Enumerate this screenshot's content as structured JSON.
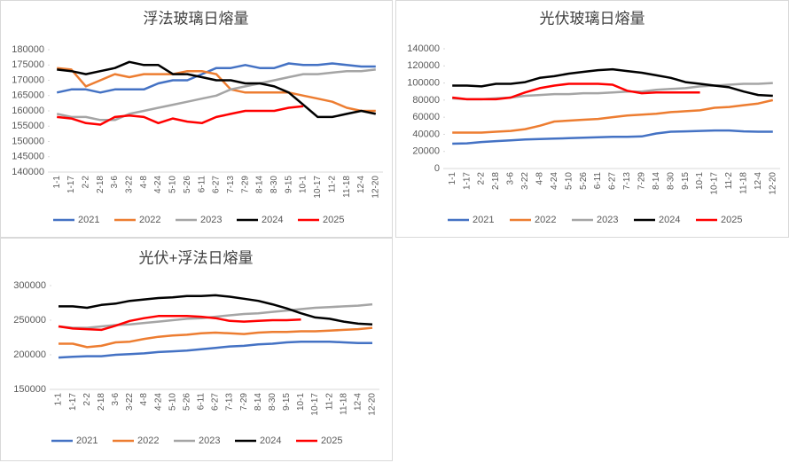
{
  "chart_data": [
    {
      "type": "line",
      "title": "浮法玻璃日熔量",
      "categories": [
        "1-1",
        "1-17",
        "2-2",
        "2-18",
        "3-6",
        "3-22",
        "4-8",
        "4-24",
        "5-10",
        "5-26",
        "6-11",
        "6-27",
        "7-13",
        "7-29",
        "8-14",
        "8-30",
        "9-15",
        "10-1",
        "10-17",
        "11-2",
        "11-18",
        "12-4",
        "12-20"
      ],
      "ylim": [
        140000,
        180000
      ],
      "yticks": [
        140000,
        145000,
        150000,
        155000,
        160000,
        165000,
        170000,
        175000,
        180000
      ],
      "series": [
        {
          "name": "2021",
          "color": "#4472c4",
          "values": [
            166000,
            167000,
            167000,
            166000,
            167000,
            167000,
            167000,
            169000,
            170000,
            170000,
            172000,
            174000,
            174000,
            175000,
            174000,
            174000,
            175500,
            175000,
            175000,
            175500,
            175000,
            174500,
            174500
          ]
        },
        {
          "name": "2022",
          "color": "#ed7d31",
          "values": [
            174000,
            173500,
            168000,
            170000,
            172000,
            171000,
            172000,
            172000,
            172000,
            173000,
            173000,
            172000,
            167000,
            166000,
            166000,
            166000,
            166000,
            165000,
            164000,
            163000,
            161000,
            160000,
            160000
          ]
        },
        {
          "name": "2023",
          "color": "#a5a5a5",
          "values": [
            159000,
            158000,
            158000,
            157000,
            157000,
            159000,
            160000,
            161000,
            162000,
            163000,
            164000,
            165000,
            167000,
            168000,
            169000,
            170000,
            171000,
            172000,
            172000,
            172500,
            173000,
            173000,
            173500
          ]
        },
        {
          "name": "2024",
          "color": "#000000",
          "values": [
            173500,
            173000,
            172000,
            173000,
            174000,
            176000,
            175000,
            175000,
            172000,
            172000,
            171000,
            170000,
            170000,
            169000,
            169000,
            168000,
            166000,
            162000,
            158000,
            158000,
            159000,
            160000,
            159000
          ]
        },
        {
          "name": "2025",
          "color": "#ff0000",
          "values": [
            158000,
            157500,
            156000,
            155500,
            158000,
            158500,
            158000,
            156000,
            157500,
            156500,
            156000,
            158000,
            159000,
            160000,
            160000,
            160000,
            161000,
            161500,
            null,
            null,
            null,
            null,
            null
          ]
        }
      ]
    },
    {
      "type": "line",
      "title": "光伏玻璃日熔量",
      "categories": [
        "1-1",
        "1-17",
        "2-2",
        "2-18",
        "3-6",
        "3-22",
        "4-8",
        "4-24",
        "5-10",
        "5-26",
        "6-11",
        "6-27",
        "7-13",
        "7-29",
        "8-14",
        "8-30",
        "9-15",
        "10-1",
        "10-17",
        "11-2",
        "11-18",
        "12-4",
        "12-20"
      ],
      "ylim": [
        0,
        140000
      ],
      "yticks": [
        0,
        20000,
        40000,
        60000,
        80000,
        100000,
        120000,
        140000
      ],
      "series": [
        {
          "name": "2021",
          "color": "#4472c4",
          "values": [
            29000,
            29500,
            31000,
            32000,
            33000,
            34000,
            34500,
            35000,
            35500,
            36000,
            36500,
            37000,
            37000,
            37500,
            41000,
            43000,
            43500,
            44000,
            44500,
            44500,
            43500,
            43000,
            43000
          ]
        },
        {
          "name": "2022",
          "color": "#ed7d31",
          "values": [
            42000,
            42000,
            42000,
            43000,
            44000,
            46000,
            50000,
            55000,
            56000,
            57000,
            58000,
            60000,
            62000,
            63000,
            64000,
            66000,
            67000,
            68000,
            71000,
            72000,
            74000,
            76000,
            80000
          ]
        },
        {
          "name": "2023",
          "color": "#a5a5a5",
          "values": [
            82000,
            81000,
            81000,
            82000,
            83000,
            85000,
            86000,
            87000,
            87000,
            88000,
            88000,
            89000,
            90000,
            90000,
            92000,
            93000,
            94000,
            96000,
            97000,
            98000,
            99000,
            99000,
            100000
          ]
        },
        {
          "name": "2024",
          "color": "#000000",
          "values": [
            97000,
            97000,
            96000,
            99000,
            99000,
            101000,
            106000,
            108000,
            111000,
            113000,
            115000,
            116000,
            114000,
            112000,
            109000,
            106000,
            101000,
            99000,
            97000,
            95000,
            90000,
            86000,
            85000
          ]
        },
        {
          "name": "2025",
          "color": "#ff0000",
          "values": [
            83000,
            81000,
            81000,
            81000,
            83000,
            89000,
            94000,
            97000,
            99000,
            99000,
            99000,
            98000,
            91000,
            88000,
            89000,
            89000,
            89000,
            89000,
            null,
            null,
            null,
            null,
            null
          ]
        }
      ]
    },
    {
      "type": "line",
      "title": "光伏+浮法日熔量",
      "categories": [
        "1-1",
        "1-17",
        "2-2",
        "2-18",
        "3-6",
        "3-22",
        "4-8",
        "4-24",
        "5-10",
        "5-26",
        "6-11",
        "6-27",
        "7-13",
        "7-29",
        "8-14",
        "8-30",
        "9-15",
        "10-1",
        "10-17",
        "11-2",
        "11-18",
        "12-4",
        "12-20"
      ],
      "ylim": [
        150000,
        300000
      ],
      "yticks": [
        150000,
        200000,
        250000,
        300000
      ],
      "series": [
        {
          "name": "2021",
          "color": "#4472c4",
          "values": [
            196000,
            197000,
            198000,
            198000,
            200000,
            201000,
            202000,
            204000,
            205000,
            206000,
            208000,
            210000,
            212000,
            213000,
            215000,
            216000,
            218000,
            219000,
            219000,
            219000,
            218000,
            217000,
            217000
          ]
        },
        {
          "name": "2022",
          "color": "#ed7d31",
          "values": [
            216000,
            216000,
            211000,
            213000,
            218000,
            219000,
            223000,
            226000,
            228000,
            229000,
            231000,
            232000,
            231000,
            230000,
            232000,
            233000,
            233000,
            234000,
            234000,
            235000,
            236000,
            237000,
            239000
          ]
        },
        {
          "name": "2023",
          "color": "#a5a5a5",
          "values": [
            241000,
            239000,
            239000,
            241000,
            243000,
            244000,
            246000,
            248000,
            250000,
            252000,
            253000,
            255000,
            257000,
            259000,
            260000,
            262000,
            264000,
            266000,
            268000,
            269000,
            270000,
            271000,
            273000
          ]
        },
        {
          "name": "2024",
          "color": "#000000",
          "values": [
            270000,
            270000,
            268000,
            272000,
            274000,
            278000,
            280000,
            282000,
            283000,
            285000,
            285000,
            286000,
            284000,
            281000,
            278000,
            273000,
            267000,
            260000,
            254000,
            252000,
            248000,
            245000,
            244000
          ]
        },
        {
          "name": "2025",
          "color": "#ff0000",
          "values": [
            241000,
            238000,
            237000,
            236000,
            242000,
            249000,
            253000,
            256000,
            256000,
            256000,
            255000,
            253000,
            249000,
            248000,
            249000,
            250000,
            250000,
            251000,
            null,
            null,
            null,
            null,
            null
          ]
        }
      ]
    }
  ]
}
